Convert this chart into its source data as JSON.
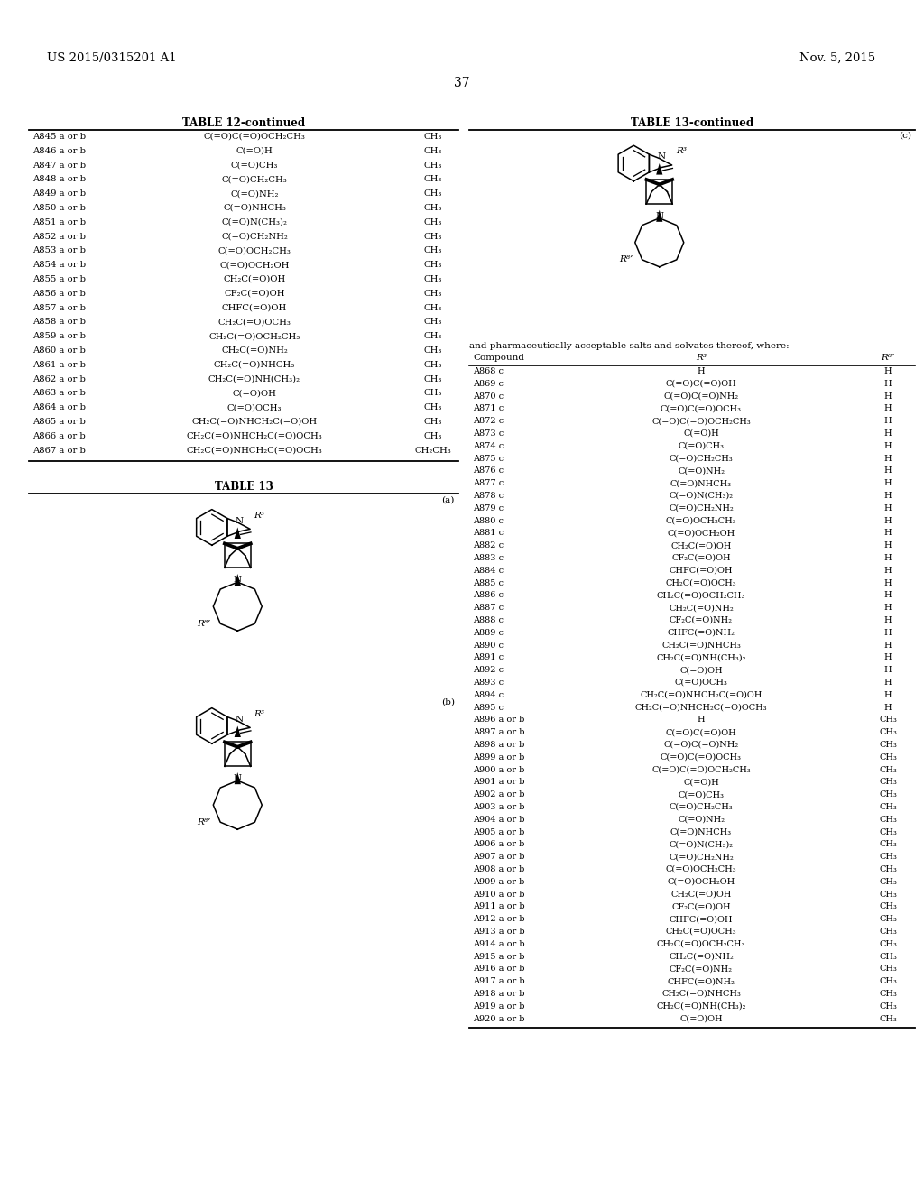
{
  "bg_color": "#ffffff",
  "header_left": "US 2015/0315201 A1",
  "header_right": "Nov. 5, 2015",
  "page_number": "37",
  "table12_title": "TABLE 12-continued",
  "table13_title": "TABLE 13",
  "table13cont_title": "TABLE 13-continued",
  "table13_note": "and pharmaceutically acceptable salts and solvates thereof, where:",
  "table12_rows": [
    [
      "A845 a or b",
      "C(=O)C(=O)OCH₂CH₃",
      "CH₃"
    ],
    [
      "A846 a or b",
      "C(=O)H",
      "CH₃"
    ],
    [
      "A847 a or b",
      "C(=O)CH₃",
      "CH₃"
    ],
    [
      "A848 a or b",
      "C(=O)CH₂CH₃",
      "CH₃"
    ],
    [
      "A849 a or b",
      "C(=O)NH₂",
      "CH₃"
    ],
    [
      "A850 a or b",
      "C(=O)NHCH₃",
      "CH₃"
    ],
    [
      "A851 a or b",
      "C(=O)N(CH₃)₂",
      "CH₃"
    ],
    [
      "A852 a or b",
      "C(=O)CH₂NH₂",
      "CH₃"
    ],
    [
      "A853 a or b",
      "C(=O)OCH₂CH₃",
      "CH₃"
    ],
    [
      "A854 a or b",
      "C(=O)OCH₂OH",
      "CH₃"
    ],
    [
      "A855 a or b",
      "CH₂C(=O)OH",
      "CH₃"
    ],
    [
      "A856 a or b",
      "CF₂C(=O)OH",
      "CH₃"
    ],
    [
      "A857 a or b",
      "CHFC(=O)OH",
      "CH₃"
    ],
    [
      "A858 a or b",
      "CH₂C(=O)OCH₃",
      "CH₃"
    ],
    [
      "A859 a or b",
      "CH₂C(=O)OCH₂CH₃",
      "CH₃"
    ],
    [
      "A860 a or b",
      "CH₂C(=O)NH₂",
      "CH₃"
    ],
    [
      "A861 a or b",
      "CH₂C(=O)NHCH₃",
      "CH₃"
    ],
    [
      "A862 a or b",
      "CH₂C(=O)NH(CH₃)₂",
      "CH₃"
    ],
    [
      "A863 a or b",
      "C(=O)OH",
      "CH₃"
    ],
    [
      "A864 a or b",
      "C(=O)OCH₃",
      "CH₃"
    ],
    [
      "A865 a or b",
      "CH₂C(=O)NHCH₂C(=O)OH",
      "CH₃"
    ],
    [
      "A866 a or b",
      "CH₂C(=O)NHCH₂C(=O)OCH₃",
      "CH₃"
    ],
    [
      "A867 a or b",
      "CH₂C(=O)NHCH₂C(=O)OCH₃",
      "CH₂CH₃"
    ]
  ],
  "table13_rows": [
    [
      "A868 c",
      "H",
      "H"
    ],
    [
      "A869 c",
      "C(=O)C(=O)OH",
      "H"
    ],
    [
      "A870 c",
      "C(=O)C(=O)NH₂",
      "H"
    ],
    [
      "A871 c",
      "C(=O)C(=O)OCH₃",
      "H"
    ],
    [
      "A872 c",
      "C(=O)C(=O)OCH₂CH₃",
      "H"
    ],
    [
      "A873 c",
      "C(=O)H",
      "H"
    ],
    [
      "A874 c",
      "C(=O)CH₃",
      "H"
    ],
    [
      "A875 c",
      "C(=O)CH₂CH₃",
      "H"
    ],
    [
      "A876 c",
      "C(=O)NH₂",
      "H"
    ],
    [
      "A877 c",
      "C(=O)NHCH₃",
      "H"
    ],
    [
      "A878 c",
      "C(=O)N(CH₃)₂",
      "H"
    ],
    [
      "A879 c",
      "C(=O)CH₂NH₂",
      "H"
    ],
    [
      "A880 c",
      "C(=O)OCH₂CH₃",
      "H"
    ],
    [
      "A881 c",
      "C(=O)OCH₂OH",
      "H"
    ],
    [
      "A882 c",
      "CH₂C(=O)OH",
      "H"
    ],
    [
      "A883 c",
      "CF₂C(=O)OH",
      "H"
    ],
    [
      "A884 c",
      "CHFC(=O)OH",
      "H"
    ],
    [
      "A885 c",
      "CH₂C(=O)OCH₃",
      "H"
    ],
    [
      "A886 c",
      "CH₂C(=O)OCH₂CH₃",
      "H"
    ],
    [
      "A887 c",
      "CH₂C(=O)NH₂",
      "H"
    ],
    [
      "A888 c",
      "CF₂C(=O)NH₂",
      "H"
    ],
    [
      "A889 c",
      "CHFC(=O)NH₂",
      "H"
    ],
    [
      "A890 c",
      "CH₂C(=O)NHCH₃",
      "H"
    ],
    [
      "A891 c",
      "CH₂C(=O)NH(CH₃)₂",
      "H"
    ],
    [
      "A892 c",
      "C(=O)OH",
      "H"
    ],
    [
      "A893 c",
      "C(=O)OCH₃",
      "H"
    ],
    [
      "A894 c",
      "CH₂C(=O)NHCH₂C(=O)OH",
      "H"
    ],
    [
      "A895 c",
      "CH₂C(=O)NHCH₂C(=O)OCH₃",
      "H"
    ],
    [
      "A896 a or b",
      "H",
      "CH₃"
    ],
    [
      "A897 a or b",
      "C(=O)C(=O)OH",
      "CH₃"
    ],
    [
      "A898 a or b",
      "C(=O)C(=O)NH₂",
      "CH₃"
    ],
    [
      "A899 a or b",
      "C(=O)C(=O)OCH₃",
      "CH₃"
    ],
    [
      "A900 a or b",
      "C(=O)C(=O)OCH₂CH₃",
      "CH₃"
    ],
    [
      "A901 a or b",
      "C(=O)H",
      "CH₃"
    ],
    [
      "A902 a or b",
      "C(=O)CH₃",
      "CH₃"
    ],
    [
      "A903 a or b",
      "C(=O)CH₂CH₃",
      "CH₃"
    ],
    [
      "A904 a or b",
      "C(=O)NH₂",
      "CH₃"
    ],
    [
      "A905 a or b",
      "C(=O)NHCH₃",
      "CH₃"
    ],
    [
      "A906 a or b",
      "C(=O)N(CH₃)₂",
      "CH₃"
    ],
    [
      "A907 a or b",
      "C(=O)CH₂NH₂",
      "CH₃"
    ],
    [
      "A908 a or b",
      "C(=O)OCH₂CH₃",
      "CH₃"
    ],
    [
      "A909 a or b",
      "C(=O)OCH₂OH",
      "CH₃"
    ],
    [
      "A910 a or b",
      "CH₂C(=O)OH",
      "CH₃"
    ],
    [
      "A911 a or b",
      "CF₂C(=O)OH",
      "CH₃"
    ],
    [
      "A912 a or b",
      "CHFC(=O)OH",
      "CH₃"
    ],
    [
      "A913 a or b",
      "CH₂C(=O)OCH₃",
      "CH₃"
    ],
    [
      "A914 a or b",
      "CH₂C(=O)OCH₂CH₃",
      "CH₃"
    ],
    [
      "A915 a or b",
      "CH₂C(=O)NH₂",
      "CH₃"
    ],
    [
      "A916 a or b",
      "CF₂C(=O)NH₂",
      "CH₃"
    ],
    [
      "A917 a or b",
      "CHFC(=O)NH₂",
      "CH₃"
    ],
    [
      "A918 a or b",
      "CH₂C(=O)NHCH₃",
      "CH₃"
    ],
    [
      "A919 a or b",
      "CH₂C(=O)NH(CH₃)₂",
      "CH₃"
    ],
    [
      "A920 a or b",
      "C(=O)OH",
      "CH₃"
    ]
  ]
}
